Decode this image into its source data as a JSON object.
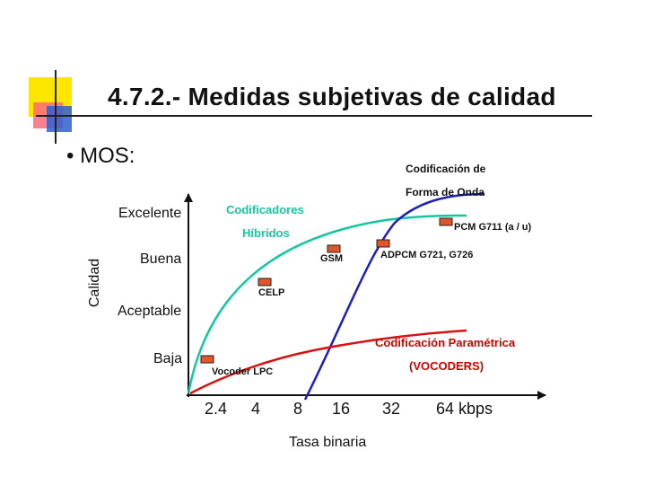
{
  "slide": {
    "title": "4.7.2.- Medidas subjetivas de calidad",
    "bullet": "• MOS:"
  },
  "diagram": {
    "y_axis_label": "Calidad",
    "x_axis_label": "Tasa binaria",
    "quality_levels": [
      "Excelente",
      "Buena",
      "Aceptable",
      "Baja"
    ],
    "x_ticks": [
      "2.4",
      "4",
      "8",
      "16",
      "32",
      "64 kbps"
    ],
    "curve_labels": {
      "waveform_line1": "Codificación de",
      "waveform_line2": "Forma de Onda",
      "hybrid_line1": "Codificadores",
      "hybrid_line2": "Híbridos",
      "parametric_line1": "Codificación Paramétrica",
      "parametric_line2": "(VOCODERS)"
    },
    "codecs": {
      "pcm": "PCM G711 (a / u)",
      "adpcm": "ADPCM G721, G726",
      "gsm": "GSM",
      "celp": "CELP",
      "vocoder": "Vocoder LPC"
    },
    "colors": {
      "hybrid_curve": "#13c8a0",
      "waveform_curve": "#1e1ebf",
      "parametric_curve": "#d81010",
      "marker_fill": "#e2552a"
    }
  }
}
